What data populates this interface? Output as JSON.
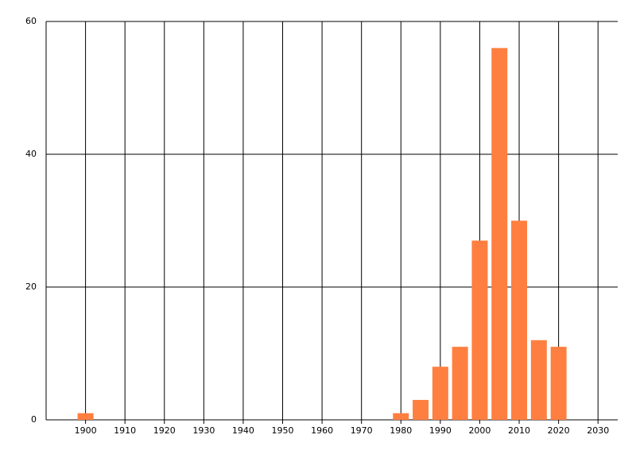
{
  "chart_data": {
    "type": "bar",
    "x": [
      1900,
      1980,
      1985,
      1990,
      1995,
      2000,
      2005,
      2010,
      2015,
      2020
    ],
    "values": [
      1,
      1,
      3,
      8,
      11,
      27,
      56,
      30,
      12,
      11
    ],
    "color": "#ff7f40",
    "xlim": [
      1890,
      2035
    ],
    "xticks": [
      1900,
      1910,
      1920,
      1930,
      1940,
      1950,
      1960,
      1970,
      1980,
      1990,
      2000,
      2010,
      2020,
      2030
    ],
    "ylim": [
      0,
      60
    ],
    "yticks": [
      0,
      20,
      40,
      60
    ],
    "grid": true
  }
}
